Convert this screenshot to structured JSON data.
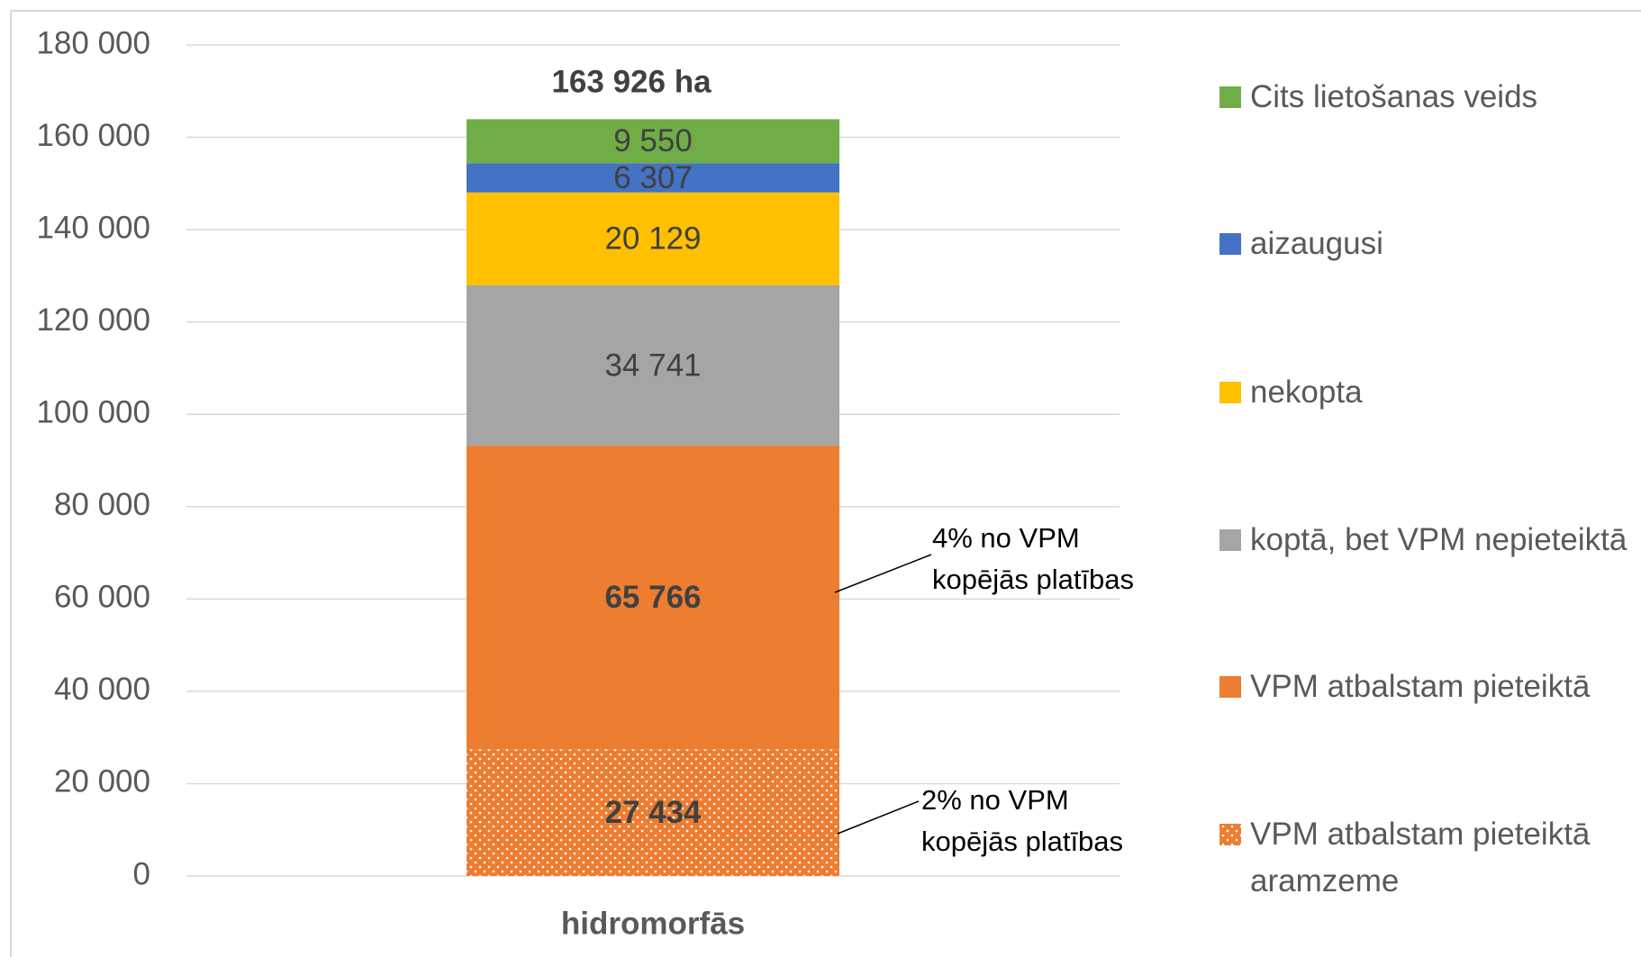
{
  "chart_data": {
    "type": "stacked_bar",
    "categories": [
      "hidromorfās"
    ],
    "total_label": "163 926 ha",
    "series": [
      {
        "name": "VPM atbalstam pieteiktā aramzeme",
        "color": "#ed7d31",
        "pattern": "dots",
        "label_bold": true,
        "values": [
          27434
        ],
        "value_labels": [
          "27 434"
        ]
      },
      {
        "name": "VPM atbalstam pieteiktā",
        "color": "#ed7d31",
        "label_bold": true,
        "values": [
          65766
        ],
        "value_labels": [
          "65 766"
        ]
      },
      {
        "name": "koptā, bet VPM nepieteiktā",
        "color": "#a5a5a5",
        "values": [
          34741
        ],
        "value_labels": [
          "34 741"
        ]
      },
      {
        "name": "nekopta",
        "color": "#ffc000",
        "values": [
          20129
        ],
        "value_labels": [
          "20 129"
        ]
      },
      {
        "name": "aizaugusi",
        "color": "#4472c4",
        "values": [
          6307
        ],
        "value_labels": [
          "6 307"
        ]
      },
      {
        "name": "Cits lietošanas veids",
        "color": "#70ad47",
        "values": [
          9550
        ],
        "value_labels": [
          "9 550"
        ]
      }
    ],
    "annotations": [
      "4% no VPM kopējās platības",
      "2% no VPM kopējās platības"
    ],
    "ylim": [
      0,
      180000
    ],
    "yticks": [
      0,
      {
        "value": 20000,
        "label": "20 000"
      },
      {
        "value": 40000,
        "label": "40 000"
      },
      {
        "value": 60000,
        "label": "60 000"
      },
      {
        "value": 80000,
        "label": "80 000"
      },
      {
        "value": 100000,
        "label": "100 000"
      },
      {
        "value": 120000,
        "label": "120 000"
      },
      {
        "value": 140000,
        "label": "140 000"
      },
      {
        "value": 160000,
        "label": "160 000"
      },
      {
        "value": 180000,
        "label": "180 000"
      }
    ],
    "grid": true
  }
}
